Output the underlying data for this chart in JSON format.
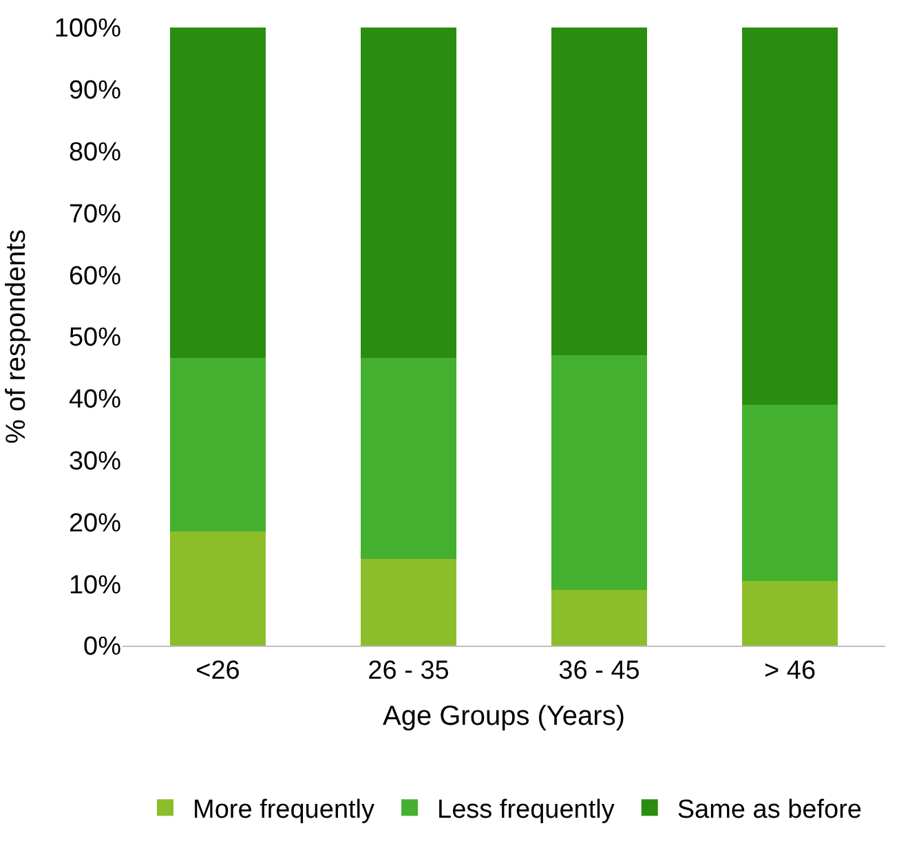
{
  "chart_data": {
    "type": "bar",
    "stacked": true,
    "xlabel": "Age Groups (Years)",
    "ylabel": "% of respondents",
    "categories": [
      "<26",
      "26 - 35",
      "36 - 45",
      "> 46"
    ],
    "series": [
      {
        "name": "More frequently",
        "color": "#8cbd2b",
        "values": [
          18.5,
          14,
          9,
          10.5
        ]
      },
      {
        "name": "Less frequently",
        "color": "#44b02f",
        "values": [
          28,
          32.5,
          38,
          28.5
        ]
      },
      {
        "name": "Same as before",
        "color": "#2b8c12",
        "values": [
          53.5,
          53.5,
          53,
          61
        ]
      }
    ],
    "ylim": [
      0,
      100
    ],
    "yticks": [
      {
        "value": 0,
        "label": "0%"
      },
      {
        "value": 10,
        "label": "10%"
      },
      {
        "value": 20,
        "label": "20%"
      },
      {
        "value": 30,
        "label": "30%"
      },
      {
        "value": 40,
        "label": "40%"
      },
      {
        "value": 50,
        "label": "50%"
      },
      {
        "value": 60,
        "label": "60%"
      },
      {
        "value": 70,
        "label": "70%"
      },
      {
        "value": 80,
        "label": "80%"
      },
      {
        "value": 90,
        "label": "90%"
      },
      {
        "value": 100,
        "label": "100%"
      }
    ],
    "legend": "bottom"
  }
}
